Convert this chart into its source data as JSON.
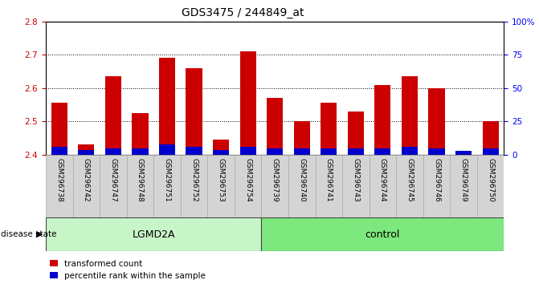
{
  "title": "GDS3475 / 244849_at",
  "samples": [
    "GSM296738",
    "GSM296742",
    "GSM296747",
    "GSM296748",
    "GSM296751",
    "GSM296752",
    "GSM296753",
    "GSM296754",
    "GSM296739",
    "GSM296740",
    "GSM296741",
    "GSM296743",
    "GSM296744",
    "GSM296745",
    "GSM296746",
    "GSM296749",
    "GSM296750"
  ],
  "red_values": [
    2.555,
    2.43,
    2.635,
    2.525,
    2.69,
    2.66,
    2.445,
    2.71,
    2.57,
    2.5,
    2.555,
    2.53,
    2.61,
    2.635,
    2.6,
    2.41,
    2.5
  ],
  "blue_values": [
    0.025,
    0.015,
    0.02,
    0.02,
    0.03,
    0.025,
    0.015,
    0.025,
    0.02,
    0.018,
    0.018,
    0.018,
    0.02,
    0.025,
    0.018,
    0.012,
    0.018
  ],
  "baseline": 2.4,
  "ylim_left": [
    2.4,
    2.8
  ],
  "ylim_right": [
    0,
    100
  ],
  "yticks_left": [
    2.4,
    2.5,
    2.6,
    2.7,
    2.8
  ],
  "yticks_right": [
    0,
    25,
    50,
    75,
    100
  ],
  "ytick_labels_right": [
    "0",
    "25",
    "50",
    "75",
    "100%"
  ],
  "groups": [
    {
      "name": "LGMD2A",
      "start": 0,
      "end": 8,
      "color": "#c8f5c8"
    },
    {
      "name": "control",
      "start": 8,
      "end": 17,
      "color": "#7de87d"
    }
  ],
  "disease_label": "disease state",
  "bar_color_red": "#cc0000",
  "bar_color_blue": "#0000cc",
  "legend_red": "transformed count",
  "legend_blue": "percentile rank within the sample",
  "sample_label_bg": "#d4d4d4"
}
